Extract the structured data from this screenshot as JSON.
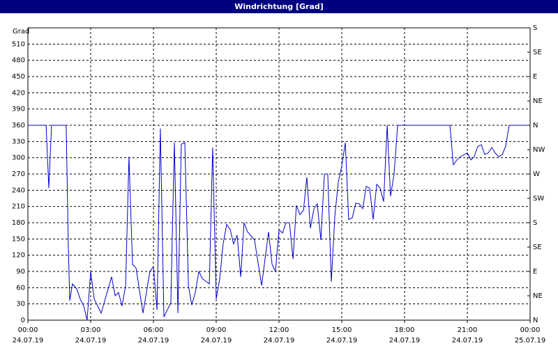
{
  "window_title": "Windrichtung [Grad]",
  "chart_data": {
    "type": "line",
    "y_label": "Grad",
    "x": [
      0,
      0.87,
      1.0,
      1.13,
      1.83,
      1.93,
      2.0,
      2.13,
      2.33,
      2.5,
      2.67,
      2.83,
      3.0,
      3.17,
      3.5,
      4.0,
      4.17,
      4.33,
      4.5,
      4.67,
      4.83,
      5.0,
      5.17,
      5.5,
      5.83,
      6.0,
      6.17,
      6.33,
      6.5,
      6.83,
      7.0,
      7.17,
      7.33,
      7.5,
      7.67,
      7.83,
      8.0,
      8.17,
      8.33,
      8.67,
      8.83,
      9.0,
      9.17,
      9.33,
      9.5,
      9.67,
      9.83,
      10.0,
      10.17,
      10.33,
      10.5,
      10.83,
      11.17,
      11.5,
      11.67,
      11.83,
      12.0,
      12.17,
      12.33,
      12.5,
      12.67,
      12.83,
      13.0,
      13.17,
      13.33,
      13.5,
      13.67,
      13.83,
      14.0,
      14.17,
      14.33,
      14.5,
      14.67,
      14.83,
      15.0,
      15.17,
      15.33,
      15.5,
      15.67,
      15.83,
      16.0,
      16.17,
      16.33,
      16.5,
      16.67,
      16.83,
      17.0,
      17.17,
      17.33,
      17.5,
      17.67,
      20.17,
      20.33,
      20.5,
      20.67,
      21.0,
      21.17,
      21.33,
      21.5,
      21.67,
      21.83,
      22.0,
      22.17,
      22.33,
      22.5,
      22.67,
      22.83,
      23.0,
      23.93
    ],
    "series": [
      {
        "name": "Windrichtung",
        "color": "#0000c8",
        "values": [
          360,
          360,
          244,
          360,
          360,
          141,
          36,
          67,
          58,
          39,
          26,
          0,
          90,
          39,
          13,
          80,
          45,
          51,
          26,
          64,
          302,
          103,
          96,
          13,
          90,
          99,
          19,
          354,
          6,
          32,
          328,
          13,
          325,
          328,
          64,
          28,
          51,
          90,
          77,
          67,
          319,
          39,
          77,
          141,
          177,
          167,
          141,
          157,
          80,
          180,
          163,
          148,
          64,
          163,
          103,
          90,
          167,
          161,
          180,
          180,
          113,
          212,
          195,
          203,
          264,
          170,
          206,
          215,
          148,
          270,
          270,
          71,
          193,
          254,
          285,
          328,
          186,
          189,
          216,
          215,
          206,
          247,
          244,
          186,
          251,
          244,
          219,
          360,
          229,
          270,
          360,
          360,
          287,
          296,
          302,
          309,
          296,
          302,
          321,
          324,
          306,
          309,
          319,
          309,
          302,
          306,
          321,
          360,
          360
        ]
      }
    ],
    "xlim": [
      0,
      24
    ],
    "xticks": [
      {
        "value": 0,
        "label": "00:00",
        "sublabel": "24.07.19"
      },
      {
        "value": 3,
        "label": "03:00",
        "sublabel": "24.07.19"
      },
      {
        "value": 6,
        "label": "06:00",
        "sublabel": "24.07.19"
      },
      {
        "value": 9,
        "label": "09:00",
        "sublabel": "24.07.19"
      },
      {
        "value": 12,
        "label": "12:00",
        "sublabel": "24.07.19"
      },
      {
        "value": 15,
        "label": "15:00",
        "sublabel": "24.07.19"
      },
      {
        "value": 18,
        "label": "18:00",
        "sublabel": "24.07.19"
      },
      {
        "value": 21,
        "label": "21:00",
        "sublabel": "24.07.19"
      },
      {
        "value": 24,
        "label": "00:00",
        "sublabel": "25.07.19"
      }
    ],
    "ylim": [
      0,
      540
    ],
    "yticks": [
      0,
      30,
      60,
      90,
      120,
      150,
      180,
      210,
      240,
      270,
      300,
      330,
      360,
      390,
      420,
      450,
      480,
      510
    ],
    "y2lim": [
      0,
      540
    ],
    "y2ticks": [
      {
        "value": 0,
        "label": "N"
      },
      {
        "value": 45,
        "label": "NE"
      },
      {
        "value": 90,
        "label": "E"
      },
      {
        "value": 135,
        "label": "SE"
      },
      {
        "value": 180,
        "label": "S"
      },
      {
        "value": 225,
        "label": "SW"
      },
      {
        "value": 270,
        "label": "W"
      },
      {
        "value": 315,
        "label": "NW"
      },
      {
        "value": 360,
        "label": "N"
      },
      {
        "value": 405,
        "label": "NE"
      },
      {
        "value": 450,
        "label": "E"
      },
      {
        "value": 495,
        "label": "SE"
      },
      {
        "value": 540,
        "label": "S"
      }
    ],
    "grid": true
  }
}
